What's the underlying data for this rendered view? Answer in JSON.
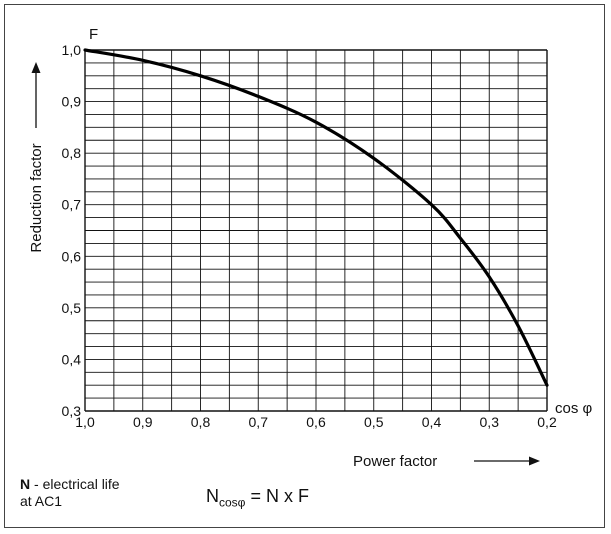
{
  "chart_data": {
    "type": "line",
    "x_axis": {
      "label": "Power factor",
      "symbol": "cos φ",
      "ticks": [
        "1,0",
        "0,9",
        "0,8",
        "0,7",
        "0,6",
        "0,5",
        "0,4",
        "0,3",
        "0,2"
      ],
      "range": [
        1.0,
        0.2
      ],
      "direction": "decreasing"
    },
    "y_axis": {
      "label": "Reduction factor",
      "symbol": "F",
      "ticks": [
        "0,3",
        "0,4",
        "0,5",
        "0,6",
        "0,7",
        "0,8",
        "0,9",
        "1,0"
      ],
      "range": [
        0.3,
        1.0
      ]
    },
    "grid": true,
    "series": [
      {
        "x": [
          1.0,
          0.9,
          0.8,
          0.7,
          0.6,
          0.5,
          0.4,
          0.35,
          0.3,
          0.25,
          0.2
        ],
        "y": [
          1.0,
          0.98,
          0.95,
          0.91,
          0.86,
          0.79,
          0.7,
          0.635,
          0.56,
          0.465,
          0.35
        ]
      }
    ],
    "notes": {
      "legend_bold": "N",
      "legend_line1": " - electrical life",
      "legend_line2": "at AC1",
      "formula_lhs": "N",
      "formula_sub": "cosφ",
      "formula_rhs": " = N x F"
    }
  }
}
